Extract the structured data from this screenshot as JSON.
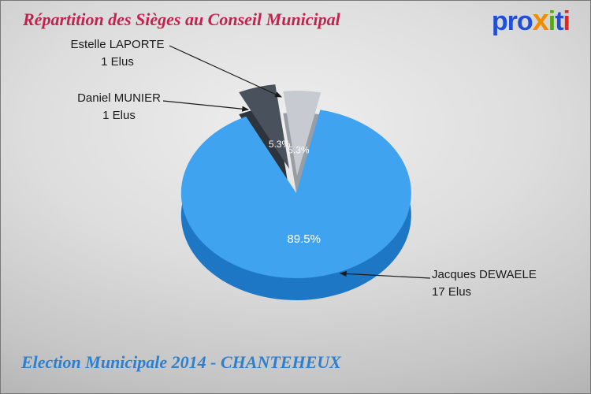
{
  "title": {
    "text": "Répartition des Sièges au Conseil Municipal",
    "color": "#c2224e"
  },
  "logo": {
    "name": "proxiti",
    "letters": [
      {
        "ch": "p",
        "color": "#1e4fd6"
      },
      {
        "ch": "r",
        "color": "#1e4fd6"
      },
      {
        "ch": "o",
        "color": "#1e4fd6"
      },
      {
        "ch": "x",
        "color": "#f28d00",
        "big": true
      },
      {
        "ch": "i",
        "color": "#55a814"
      },
      {
        "ch": "t",
        "color": "#1e4fd6"
      },
      {
        "ch": "i",
        "color": "#e2261d"
      }
    ]
  },
  "footer": {
    "text": "Election Municipale 2014 - CHANTEHEUX",
    "color": "#2d7fd0"
  },
  "chart_data": {
    "type": "pie",
    "title": "Répartition des Sièges au Conseil Municipal",
    "total_seats": 19,
    "unit": "Elus",
    "legend_position": "callouts",
    "slices": [
      {
        "label": "Jacques DEWAELE",
        "value": 17,
        "value_label": "17 Elus",
        "pct": 89.5,
        "pct_label": "89.5%",
        "color": "#3fa3f0",
        "side_color": "#1d77c4",
        "explode": 0
      },
      {
        "label": "Daniel MUNIER",
        "value": 1,
        "value_label": "1 Elus",
        "pct": 5.3,
        "pct_label": "5.3%",
        "color": "#49525c",
        "side_color": "#2e343b",
        "explode": 32
      },
      {
        "label": "Estelle LAPORTE",
        "value": 1,
        "value_label": "1 Elus",
        "pct": 5.3,
        "pct_label": "5.3%",
        "color": "#c7cbd1",
        "side_color": "#989ea6",
        "explode": 22
      }
    ]
  }
}
